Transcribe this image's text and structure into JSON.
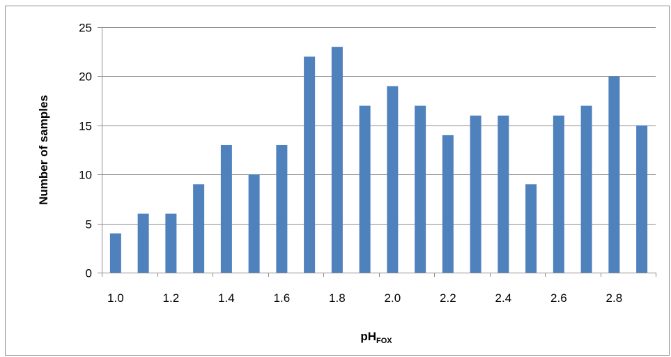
{
  "chart_data": {
    "type": "bar",
    "categories": [
      "1.0",
      "1.1",
      "1.2",
      "1.3",
      "1.4",
      "1.5",
      "1.6",
      "1.7",
      "1.8",
      "1.9",
      "2.0",
      "2.1",
      "2.2",
      "2.3",
      "2.4",
      "2.5",
      "2.6",
      "2.7",
      "2.8",
      "2.9"
    ],
    "x_tick_labels": [
      "1.0",
      "1.2",
      "1.4",
      "1.6",
      "1.8",
      "2.0",
      "2.2",
      "2.4",
      "2.6",
      "2.8"
    ],
    "values": [
      4,
      6,
      6,
      9,
      13,
      10,
      13,
      22,
      23,
      17,
      19,
      17,
      14,
      16,
      16,
      9,
      16,
      17,
      20,
      15
    ],
    "ylim": [
      0,
      25
    ],
    "y_ticks": [
      0,
      5,
      10,
      15,
      20,
      25
    ],
    "ylabel": "Number of samples",
    "xlabel_main": "pH",
    "xlabel_sub": "FOX",
    "grid": "horizontal",
    "bar_color": "#4f81bd"
  }
}
